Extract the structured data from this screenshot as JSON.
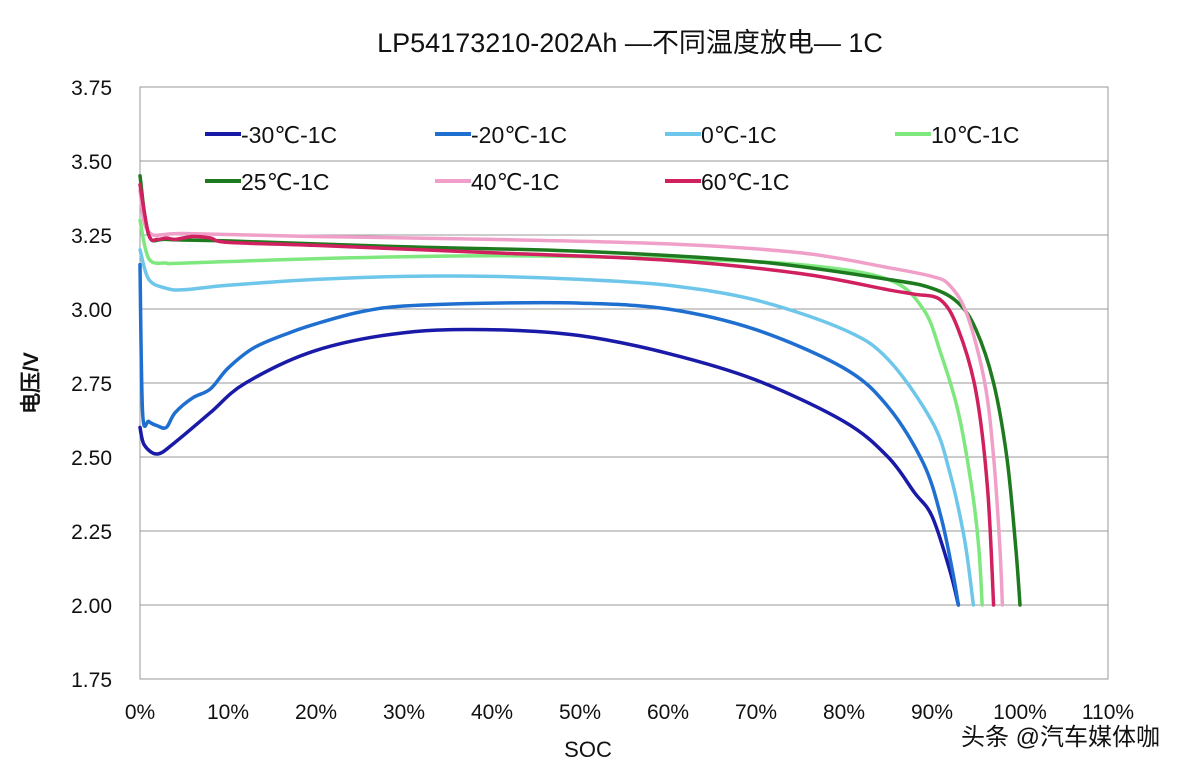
{
  "chart_data": {
    "type": "line",
    "title": "LP54173210-202Ah —不同温度放电— 1C",
    "xlabel": "SOC",
    "ylabel": "电压/V",
    "xlim": [
      0,
      110
    ],
    "ylim": [
      1.75,
      3.75
    ],
    "x_ticks": [
      "0%",
      "10%",
      "20%",
      "30%",
      "40%",
      "50%",
      "60%",
      "70%",
      "80%",
      "90%",
      "100%",
      "110%"
    ],
    "y_ticks": [
      "1.75",
      "2.00",
      "2.25",
      "2.50",
      "2.75",
      "3.00",
      "3.25",
      "3.50",
      "3.75"
    ],
    "grid": "horizontal",
    "legend_placement": "top, inside plot",
    "series": [
      {
        "name": "-30℃-1C",
        "color": "#1a1aa8",
        "points": [
          [
            0,
            2.6
          ],
          [
            0.5,
            2.54
          ],
          [
            2,
            2.51
          ],
          [
            4,
            2.55
          ],
          [
            8,
            2.65
          ],
          [
            12,
            2.75
          ],
          [
            20,
            2.86
          ],
          [
            30,
            2.92
          ],
          [
            40,
            2.93
          ],
          [
            50,
            2.91
          ],
          [
            60,
            2.85
          ],
          [
            70,
            2.76
          ],
          [
            80,
            2.62
          ],
          [
            85,
            2.5
          ],
          [
            88,
            2.38
          ],
          [
            90,
            2.3
          ],
          [
            92,
            2.12
          ],
          [
            93,
            2.0
          ]
        ]
      },
      {
        "name": "-20℃-1C",
        "color": "#1f6fd0",
        "points": [
          [
            0,
            3.15
          ],
          [
            0.3,
            2.65
          ],
          [
            1,
            2.62
          ],
          [
            2,
            2.605
          ],
          [
            3,
            2.6
          ],
          [
            4,
            2.65
          ],
          [
            6,
            2.7
          ],
          [
            8,
            2.73
          ],
          [
            10,
            2.8
          ],
          [
            13,
            2.87
          ],
          [
            17,
            2.92
          ],
          [
            20,
            2.95
          ],
          [
            25,
            2.99
          ],
          [
            30,
            3.01
          ],
          [
            40,
            3.02
          ],
          [
            50,
            3.02
          ],
          [
            60,
            3.0
          ],
          [
            70,
            2.93
          ],
          [
            80,
            2.8
          ],
          [
            85,
            2.67
          ],
          [
            89,
            2.48
          ],
          [
            91,
            2.3
          ],
          [
            92.3,
            2.12
          ],
          [
            93,
            2.0
          ]
        ]
      },
      {
        "name": "0℃-1C",
        "color": "#6ec6ea",
        "points": [
          [
            0,
            3.2
          ],
          [
            1,
            3.1
          ],
          [
            3,
            3.07
          ],
          [
            5,
            3.065
          ],
          [
            10,
            3.08
          ],
          [
            20,
            3.1
          ],
          [
            30,
            3.11
          ],
          [
            40,
            3.11
          ],
          [
            50,
            3.1
          ],
          [
            60,
            3.08
          ],
          [
            70,
            3.03
          ],
          [
            80,
            2.93
          ],
          [
            85,
            2.83
          ],
          [
            90,
            2.62
          ],
          [
            92,
            2.45
          ],
          [
            93.7,
            2.22
          ],
          [
            94.7,
            2.0
          ]
        ]
      },
      {
        "name": "10℃-1C",
        "color": "#7ee87e",
        "points": [
          [
            0,
            3.3
          ],
          [
            1,
            3.17
          ],
          [
            3,
            3.155
          ],
          [
            5,
            3.155
          ],
          [
            20,
            3.17
          ],
          [
            40,
            3.18
          ],
          [
            60,
            3.17
          ],
          [
            75,
            3.15
          ],
          [
            85,
            3.1
          ],
          [
            89,
            3.0
          ],
          [
            91,
            2.85
          ],
          [
            93,
            2.65
          ],
          [
            94.5,
            2.4
          ],
          [
            95.3,
            2.2
          ],
          [
            95.7,
            2.0
          ]
        ]
      },
      {
        "name": "25℃-1C",
        "color": "#1e7a1e",
        "points": [
          [
            0,
            3.45
          ],
          [
            1,
            3.25
          ],
          [
            3,
            3.235
          ],
          [
            10,
            3.23
          ],
          [
            30,
            3.21
          ],
          [
            50,
            3.195
          ],
          [
            70,
            3.16
          ],
          [
            85,
            3.1
          ],
          [
            90,
            3.07
          ],
          [
            93,
            3.02
          ],
          [
            95,
            2.93
          ],
          [
            97,
            2.75
          ],
          [
            98.5,
            2.5
          ],
          [
            99.5,
            2.2
          ],
          [
            100,
            2.0
          ]
        ]
      },
      {
        "name": "40℃-1C",
        "color": "#f0a0c8",
        "points": [
          [
            0,
            3.4
          ],
          [
            1,
            3.26
          ],
          [
            5,
            3.255
          ],
          [
            20,
            3.245
          ],
          [
            40,
            3.235
          ],
          [
            60,
            3.22
          ],
          [
            75,
            3.19
          ],
          [
            85,
            3.14
          ],
          [
            90,
            3.11
          ],
          [
            92,
            3.08
          ],
          [
            94,
            2.98
          ],
          [
            96,
            2.75
          ],
          [
            97,
            2.5
          ],
          [
            97.7,
            2.2
          ],
          [
            98,
            2.0
          ]
        ]
      },
      {
        "name": "60℃-1C",
        "color": "#d0205f",
        "points": [
          [
            0,
            3.42
          ],
          [
            1,
            3.25
          ],
          [
            2,
            3.235
          ],
          [
            3,
            3.24
          ],
          [
            4,
            3.235
          ],
          [
            6,
            3.245
          ],
          [
            8,
            3.24
          ],
          [
            10,
            3.225
          ],
          [
            20,
            3.215
          ],
          [
            40,
            3.19
          ],
          [
            60,
            3.165
          ],
          [
            75,
            3.12
          ],
          [
            85,
            3.065
          ],
          [
            88,
            3.05
          ],
          [
            91,
            3.03
          ],
          [
            93,
            2.93
          ],
          [
            95,
            2.72
          ],
          [
            96.3,
            2.4
          ],
          [
            97,
            2.0
          ]
        ]
      }
    ]
  },
  "watermark": "头条 @汽车媒体咖"
}
